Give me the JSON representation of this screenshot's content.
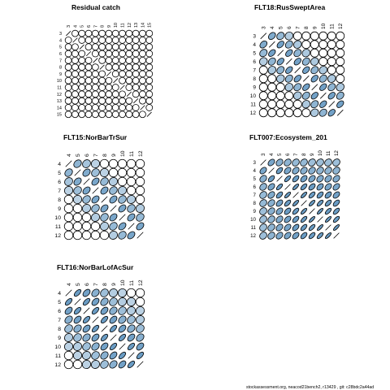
{
  "footer": "stockassessment.org, neacod21bench2, r13429 , git: c28bdc2a44ad",
  "colors": {
    "positive_fill": "#6a9cc4",
    "ellipse_stroke": "#000000",
    "background": "#ffffff"
  },
  "chart_data": [
    {
      "type": "heatmap",
      "subtype": "correlation-ellipse",
      "title": "Residual catch",
      "labels": [
        "3",
        "4",
        "5",
        "6",
        "7",
        "8",
        "9",
        "10",
        "11",
        "12",
        "13",
        "14",
        "15"
      ],
      "matrix": [
        [
          1,
          0,
          0,
          0,
          0,
          0,
          0,
          0,
          0,
          0,
          0,
          0,
          0
        ],
        [
          0,
          1,
          0,
          0,
          0,
          0,
          0,
          0,
          0,
          0,
          0,
          0,
          0
        ],
        [
          0,
          0,
          1,
          0,
          0,
          0,
          0,
          0,
          0,
          0,
          0,
          0,
          0
        ],
        [
          0,
          0,
          0,
          1,
          0,
          0,
          0,
          0,
          0,
          0,
          0,
          0,
          0
        ],
        [
          0,
          0,
          0,
          0,
          1,
          0,
          0,
          0,
          0,
          0,
          0,
          0,
          0
        ],
        [
          0,
          0,
          0,
          0,
          0,
          1,
          0,
          0,
          0,
          0,
          0,
          0,
          0
        ],
        [
          0,
          0,
          0,
          0,
          0,
          0,
          1,
          0,
          0,
          0,
          0,
          0,
          0
        ],
        [
          0,
          0,
          0,
          0,
          0,
          0,
          0,
          1,
          0,
          0,
          0,
          0,
          0
        ],
        [
          0,
          0,
          0,
          0,
          0,
          0,
          0,
          0,
          1,
          0,
          0,
          0,
          0
        ],
        [
          0,
          0,
          0,
          0,
          0,
          0,
          0,
          0,
          0,
          1,
          0,
          0,
          0
        ],
        [
          0,
          0,
          0,
          0,
          0,
          0,
          0,
          0,
          0,
          0,
          1,
          0,
          0
        ],
        [
          0,
          0,
          0,
          0,
          0,
          0,
          0,
          0,
          0,
          0,
          0,
          1,
          0
        ],
        [
          0,
          0,
          0,
          0,
          0,
          0,
          0,
          0,
          0,
          0,
          0,
          0,
          1
        ]
      ]
    },
    {
      "type": "heatmap",
      "subtype": "correlation-ellipse",
      "title": "FLT18:RusSweptArea",
      "labels": [
        "3",
        "4",
        "5",
        "6",
        "7",
        "8",
        "9",
        "10",
        "11",
        "12"
      ],
      "matrix": [
        [
          1,
          0.5,
          0.35,
          0.15,
          0,
          0,
          0,
          0,
          0,
          0
        ],
        [
          0.5,
          1,
          0.6,
          0.4,
          0.2,
          0,
          0,
          0,
          0,
          0
        ],
        [
          0.35,
          0.6,
          1,
          0.6,
          0.4,
          0.2,
          0,
          0,
          0,
          0
        ],
        [
          0.15,
          0.4,
          0.6,
          1,
          0.6,
          0.4,
          0.2,
          0,
          0,
          0
        ],
        [
          0,
          0.2,
          0.4,
          0.6,
          1,
          0.6,
          0.4,
          0.2,
          0,
          0
        ],
        [
          0,
          0,
          0.2,
          0.4,
          0.6,
          1,
          0.6,
          0.4,
          0.2,
          0
        ],
        [
          0,
          0,
          0,
          0.2,
          0.4,
          0.6,
          1,
          0.6,
          0.4,
          0.2
        ],
        [
          0,
          0,
          0,
          0,
          0.2,
          0.4,
          0.6,
          1,
          0.6,
          0.4
        ],
        [
          0,
          0,
          0,
          0,
          0,
          0.2,
          0.4,
          0.6,
          1,
          0.6
        ],
        [
          0,
          0,
          0,
          0,
          0,
          0,
          0.2,
          0.4,
          0.6,
          1
        ]
      ]
    },
    {
      "type": "heatmap",
      "subtype": "correlation-ellipse",
      "title": "FLT15:NorBarTrSur",
      "labels": [
        "4",
        "5",
        "6",
        "7",
        "8",
        "9",
        "10",
        "11",
        "12"
      ],
      "matrix": [
        [
          1,
          0.4,
          0.25,
          0.1,
          0,
          0,
          0,
          0,
          0
        ],
        [
          0.4,
          1,
          0.5,
          0.3,
          0.1,
          0,
          0,
          0,
          0
        ],
        [
          0.25,
          0.5,
          1,
          0.55,
          0.35,
          0.15,
          0,
          0,
          0
        ],
        [
          0.1,
          0.3,
          0.55,
          1,
          0.55,
          0.35,
          0.15,
          0,
          0
        ],
        [
          0,
          0.1,
          0.35,
          0.55,
          1,
          0.55,
          0.35,
          0.15,
          0
        ],
        [
          0,
          0,
          0.15,
          0.35,
          0.55,
          1,
          0.55,
          0.35,
          0.15
        ],
        [
          0,
          0,
          0,
          0.15,
          0.35,
          0.55,
          1,
          0.55,
          0.35
        ],
        [
          0,
          0,
          0,
          0,
          0.15,
          0.35,
          0.55,
          1,
          0.55
        ],
        [
          0,
          0,
          0,
          0,
          0,
          0.15,
          0.35,
          0.55,
          1
        ]
      ]
    },
    {
      "type": "heatmap",
      "subtype": "correlation-ellipse",
      "title": "FLT007:Ecosystem_201",
      "labels": [
        "3",
        "4",
        "5",
        "6",
        "7",
        "8",
        "9",
        "10",
        "11",
        "12"
      ],
      "matrix": [
        [
          1,
          0.55,
          0.45,
          0.4,
          0.35,
          0.35,
          0.3,
          0.3,
          0.3,
          0.3
        ],
        [
          0.55,
          1,
          0.7,
          0.55,
          0.5,
          0.45,
          0.45,
          0.4,
          0.4,
          0.4
        ],
        [
          0.45,
          0.7,
          1,
          0.8,
          0.7,
          0.6,
          0.55,
          0.5,
          0.5,
          0.5
        ],
        [
          0.4,
          0.55,
          0.8,
          1,
          0.85,
          0.75,
          0.65,
          0.6,
          0.55,
          0.55
        ],
        [
          0.35,
          0.5,
          0.7,
          0.85,
          1,
          0.85,
          0.75,
          0.7,
          0.65,
          0.6
        ],
        [
          0.35,
          0.45,
          0.6,
          0.75,
          0.85,
          1,
          0.85,
          0.8,
          0.75,
          0.7
        ],
        [
          0.3,
          0.45,
          0.55,
          0.65,
          0.75,
          0.85,
          1,
          0.88,
          0.8,
          0.75
        ],
        [
          0.3,
          0.4,
          0.5,
          0.6,
          0.7,
          0.8,
          0.88,
          1,
          0.88,
          0.8
        ],
        [
          0.3,
          0.4,
          0.5,
          0.55,
          0.65,
          0.75,
          0.8,
          0.88,
          1,
          0.88
        ],
        [
          0.3,
          0.4,
          0.5,
          0.55,
          0.6,
          0.7,
          0.75,
          0.8,
          0.88,
          1
        ]
      ]
    },
    {
      "type": "heatmap",
      "subtype": "correlation-ellipse",
      "title": "FLT16:NorBarLofAcSur",
      "labels": [
        "4",
        "5",
        "6",
        "7",
        "8",
        "9",
        "10",
        "11",
        "12"
      ],
      "matrix": [
        [
          1,
          0.75,
          0.6,
          0.45,
          0.3,
          0.15,
          0.1,
          0,
          0
        ],
        [
          0.75,
          1,
          0.75,
          0.6,
          0.45,
          0.3,
          0.15,
          0.1,
          0
        ],
        [
          0.6,
          0.75,
          1,
          0.75,
          0.6,
          0.45,
          0.3,
          0.15,
          0.1
        ],
        [
          0.45,
          0.6,
          0.75,
          1,
          0.75,
          0.6,
          0.45,
          0.3,
          0.15
        ],
        [
          0.3,
          0.45,
          0.6,
          0.75,
          1,
          0.75,
          0.6,
          0.45,
          0.3
        ],
        [
          0.15,
          0.3,
          0.45,
          0.6,
          0.75,
          1,
          0.75,
          0.6,
          0.45
        ],
        [
          0.1,
          0.15,
          0.3,
          0.45,
          0.6,
          0.75,
          1,
          0.75,
          0.6
        ],
        [
          0,
          0.1,
          0.15,
          0.3,
          0.45,
          0.6,
          0.75,
          1,
          0.75
        ],
        [
          0,
          0,
          0.1,
          0.15,
          0.3,
          0.45,
          0.6,
          0.75,
          1
        ]
      ]
    }
  ]
}
